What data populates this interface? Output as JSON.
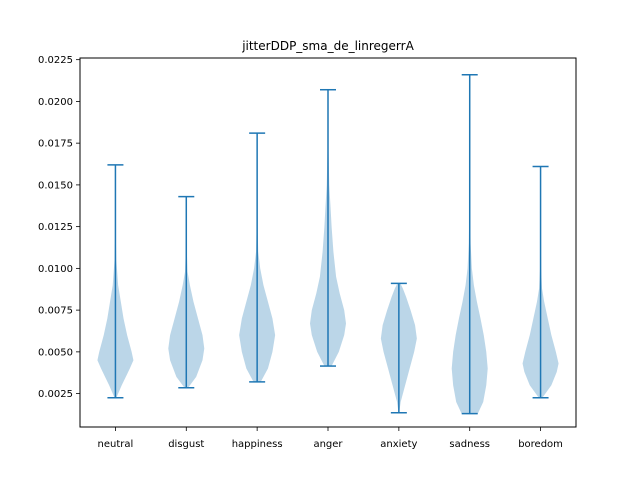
{
  "chart_data": {
    "type": "violin",
    "title": "jitterDDP_sma_de_linregerrA",
    "xlabel": "",
    "ylabel": "",
    "categories": [
      "neutral",
      "disgust",
      "happiness",
      "anger",
      "anxiety",
      "sadness",
      "boredom"
    ],
    "ylim": [
      0.0005,
      0.0226
    ],
    "yticks": [
      "0.0025",
      "0.0050",
      "0.0075",
      "0.0100",
      "0.0125",
      "0.0150",
      "0.0175",
      "0.0200",
      "0.0225"
    ],
    "series": [
      {
        "min": 0.00225,
        "max": 0.0162,
        "profile": [
          [
            0.00225,
            0.05
          ],
          [
            0.003,
            0.35
          ],
          [
            0.004,
            0.8
          ],
          [
            0.0045,
            1.0
          ],
          [
            0.005,
            0.9
          ],
          [
            0.006,
            0.65
          ],
          [
            0.007,
            0.45
          ],
          [
            0.008,
            0.3
          ],
          [
            0.009,
            0.15
          ],
          [
            0.0105,
            0.05
          ],
          [
            0.012,
            0.02
          ],
          [
            0.014,
            0.01
          ],
          [
            0.0162,
            0.003
          ]
        ]
      },
      {
        "min": 0.00285,
        "max": 0.0143,
        "profile": [
          [
            0.00285,
            0.1
          ],
          [
            0.0035,
            0.55
          ],
          [
            0.0045,
            0.9
          ],
          [
            0.0052,
            1.0
          ],
          [
            0.006,
            0.9
          ],
          [
            0.007,
            0.65
          ],
          [
            0.008,
            0.4
          ],
          [
            0.009,
            0.2
          ],
          [
            0.0098,
            0.07
          ],
          [
            0.011,
            0.03
          ],
          [
            0.0125,
            0.015
          ],
          [
            0.0143,
            0.005
          ]
        ]
      },
      {
        "min": 0.0032,
        "max": 0.0181,
        "profile": [
          [
            0.0032,
            0.2
          ],
          [
            0.004,
            0.6
          ],
          [
            0.005,
            0.85
          ],
          [
            0.006,
            1.0
          ],
          [
            0.007,
            0.85
          ],
          [
            0.008,
            0.6
          ],
          [
            0.009,
            0.35
          ],
          [
            0.01,
            0.17
          ],
          [
            0.011,
            0.06
          ],
          [
            0.0125,
            0.025
          ],
          [
            0.015,
            0.012
          ],
          [
            0.0181,
            0.004
          ]
        ]
      },
      {
        "min": 0.00415,
        "max": 0.0207,
        "profile": [
          [
            0.00415,
            0.2
          ],
          [
            0.005,
            0.6
          ],
          [
            0.006,
            0.9
          ],
          [
            0.0067,
            1.0
          ],
          [
            0.0075,
            0.9
          ],
          [
            0.0085,
            0.65
          ],
          [
            0.0095,
            0.45
          ],
          [
            0.011,
            0.3
          ],
          [
            0.0125,
            0.2
          ],
          [
            0.0135,
            0.15
          ],
          [
            0.015,
            0.07
          ],
          [
            0.017,
            0.03
          ],
          [
            0.019,
            0.015
          ],
          [
            0.0207,
            0.005
          ]
        ]
      },
      {
        "min": 0.00135,
        "max": 0.0091,
        "profile": [
          [
            0.00135,
            0.02
          ],
          [
            0.002,
            0.1
          ],
          [
            0.003,
            0.35
          ],
          [
            0.004,
            0.6
          ],
          [
            0.005,
            0.85
          ],
          [
            0.0058,
            1.0
          ],
          [
            0.0066,
            0.9
          ],
          [
            0.0075,
            0.65
          ],
          [
            0.0083,
            0.4
          ],
          [
            0.0088,
            0.22
          ],
          [
            0.0091,
            0.08
          ]
        ]
      },
      {
        "min": 0.0013,
        "max": 0.0216,
        "profile": [
          [
            0.0013,
            0.45
          ],
          [
            0.002,
            0.75
          ],
          [
            0.003,
            0.92
          ],
          [
            0.004,
            1.0
          ],
          [
            0.005,
            0.92
          ],
          [
            0.006,
            0.78
          ],
          [
            0.007,
            0.6
          ],
          [
            0.008,
            0.4
          ],
          [
            0.009,
            0.23
          ],
          [
            0.01,
            0.12
          ],
          [
            0.0115,
            0.05
          ],
          [
            0.013,
            0.03
          ],
          [
            0.015,
            0.02
          ],
          [
            0.018,
            0.01
          ],
          [
            0.0216,
            0.005
          ]
        ]
      },
      {
        "min": 0.00225,
        "max": 0.0161,
        "profile": [
          [
            0.00225,
            0.1
          ],
          [
            0.003,
            0.6
          ],
          [
            0.0038,
            0.9
          ],
          [
            0.0043,
            1.0
          ],
          [
            0.005,
            0.85
          ],
          [
            0.006,
            0.6
          ],
          [
            0.007,
            0.4
          ],
          [
            0.008,
            0.2
          ],
          [
            0.0088,
            0.08
          ],
          [
            0.01,
            0.03
          ],
          [
            0.012,
            0.015
          ],
          [
            0.0161,
            0.003
          ]
        ]
      }
    ]
  }
}
